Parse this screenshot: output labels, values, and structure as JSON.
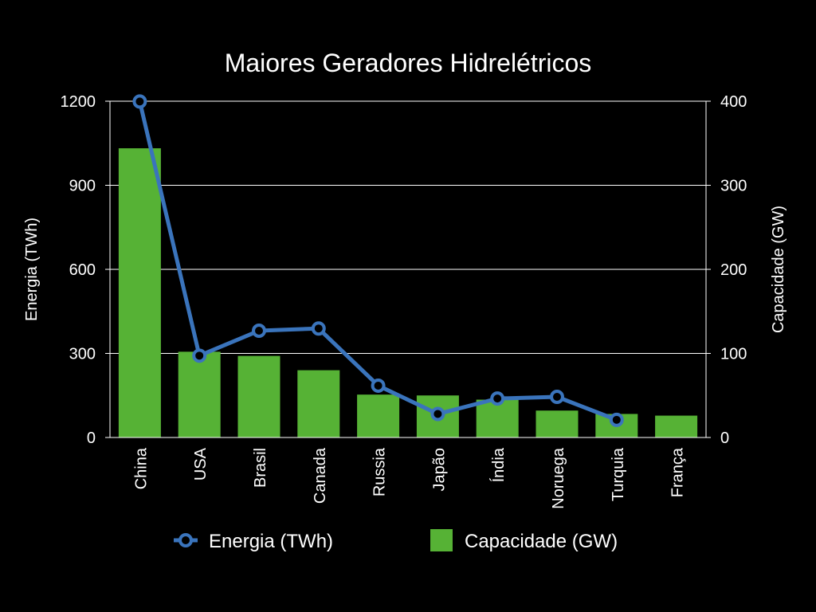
{
  "colors": {
    "background": "#000000",
    "bars": "#56b235",
    "line": "#3a74bc",
    "grid": "#ffffff",
    "text": "#ffffff"
  },
  "chart_data": {
    "type": "bar",
    "title": "Maiores Geradores Hidrelétricos",
    "categories": [
      "China",
      "USA",
      "Brasil",
      "Canada",
      "Russia",
      "Japão",
      "Índia",
      "Noruega",
      "Turquia",
      "França"
    ],
    "y_left": {
      "label": "Energia (TWh)",
      "range": [
        0,
        1200
      ],
      "ticks": [
        "0",
        "300",
        "600",
        "900",
        "1200"
      ]
    },
    "y_right": {
      "label": "Capacidade (GW)",
      "range": [
        0,
        400
      ],
      "ticks": [
        "0",
        "100",
        "200",
        "300",
        "400"
      ]
    },
    "grid": true,
    "legend_position": "bottom",
    "series": [
      {
        "name": "Energia (TWh)",
        "type": "line",
        "axis": "left",
        "values": [
          1199,
          292,
          381,
          389,
          185,
          84,
          139,
          145,
          63,
          null
        ]
      },
      {
        "name": "Capacidade (GW)",
        "type": "bar",
        "axis": "right",
        "values": [
          344,
          102,
          97,
          80,
          51,
          50,
          45,
          32,
          28,
          26
        ]
      }
    ]
  }
}
